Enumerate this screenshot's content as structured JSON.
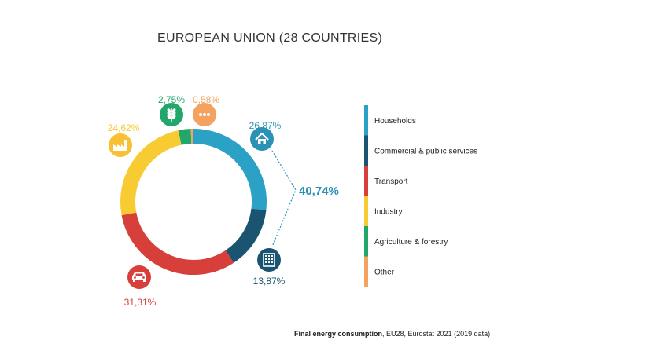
{
  "title": "EUROPEAN UNION (28 COUNTRIES)",
  "caption": {
    "bold": "Final energy consumption",
    "rest": ", EU28, Eurostat 2021 (2019 data)"
  },
  "group_label": "40,74%",
  "chart_data": {
    "type": "pie",
    "title": "EUROPEAN UNION (28 COUNTRIES)",
    "categories": [
      "Households",
      "Commercial & public services",
      "Transport",
      "Industry",
      "Agriculture & forestry",
      "Other"
    ],
    "values": [
      26.87,
      13.87,
      31.31,
      24.62,
      2.75,
      0.58
    ],
    "value_labels": [
      "26,87%",
      "13,87%",
      "31,31%",
      "24,62%",
      "2,75%",
      "0,58%"
    ],
    "colors": [
      "#2ba1c6",
      "#1b5470",
      "#d7403a",
      "#f8cb32",
      "#22a66a",
      "#f3a35f"
    ],
    "icons": [
      "house-icon",
      "office-building-icon",
      "car-icon",
      "factory-icon",
      "wheat-icon",
      "dots-icon"
    ],
    "legend_position": "right",
    "donut": true
  }
}
